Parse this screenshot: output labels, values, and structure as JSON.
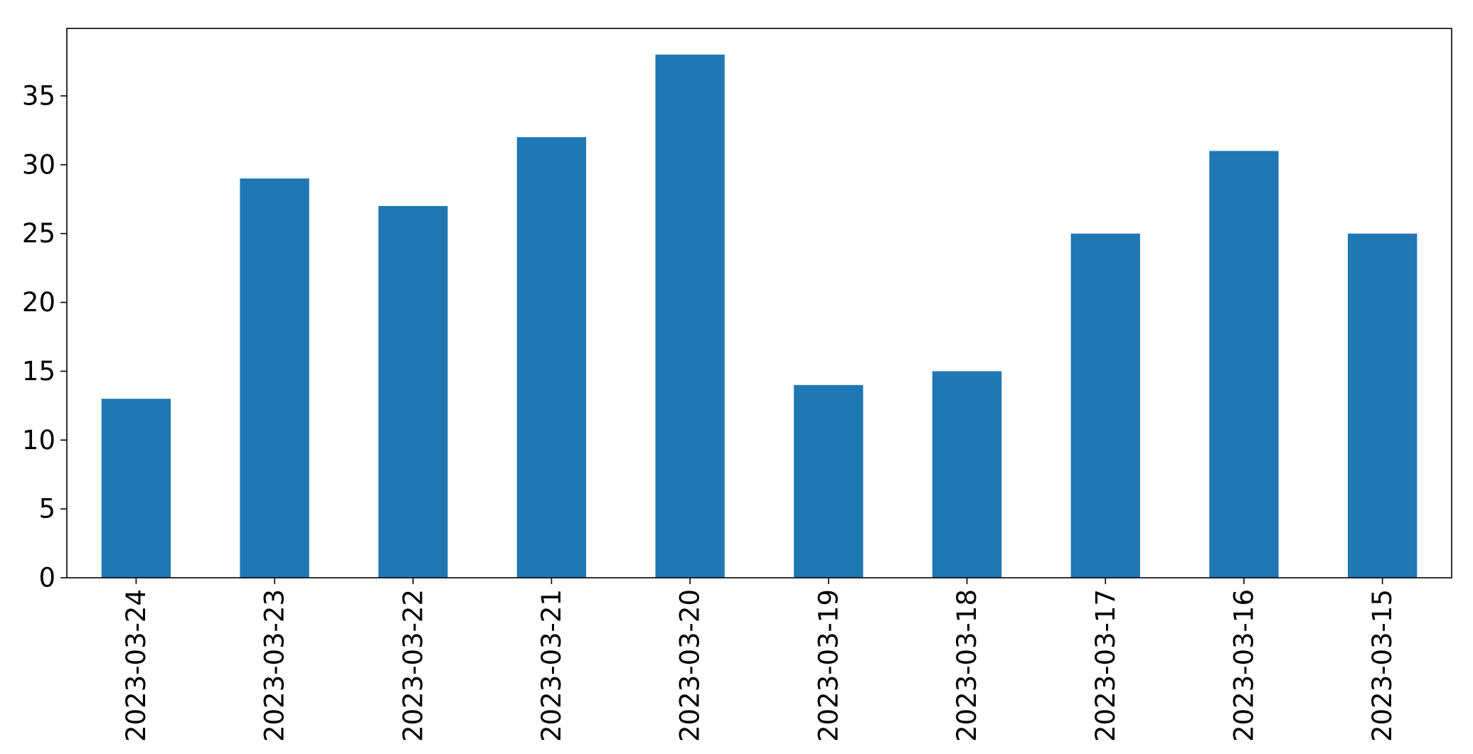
{
  "chart_data": {
    "type": "bar",
    "title": "",
    "xlabel": "",
    "ylabel": "",
    "categories": [
      "2023-03-24",
      "2023-03-23",
      "2023-03-22",
      "2023-03-21",
      "2023-03-20",
      "2023-03-19",
      "2023-03-18",
      "2023-03-17",
      "2023-03-16",
      "2023-03-15"
    ],
    "values": [
      13,
      29,
      27,
      32,
      38,
      14,
      15,
      25,
      31,
      25
    ],
    "ylim": [
      0,
      39.9
    ],
    "yticks": [
      0,
      5,
      10,
      15,
      20,
      25,
      30,
      35
    ],
    "bar_color": "#1f77b4",
    "grid": false,
    "legend": "none",
    "x_tick_rotation": "vertical"
  }
}
